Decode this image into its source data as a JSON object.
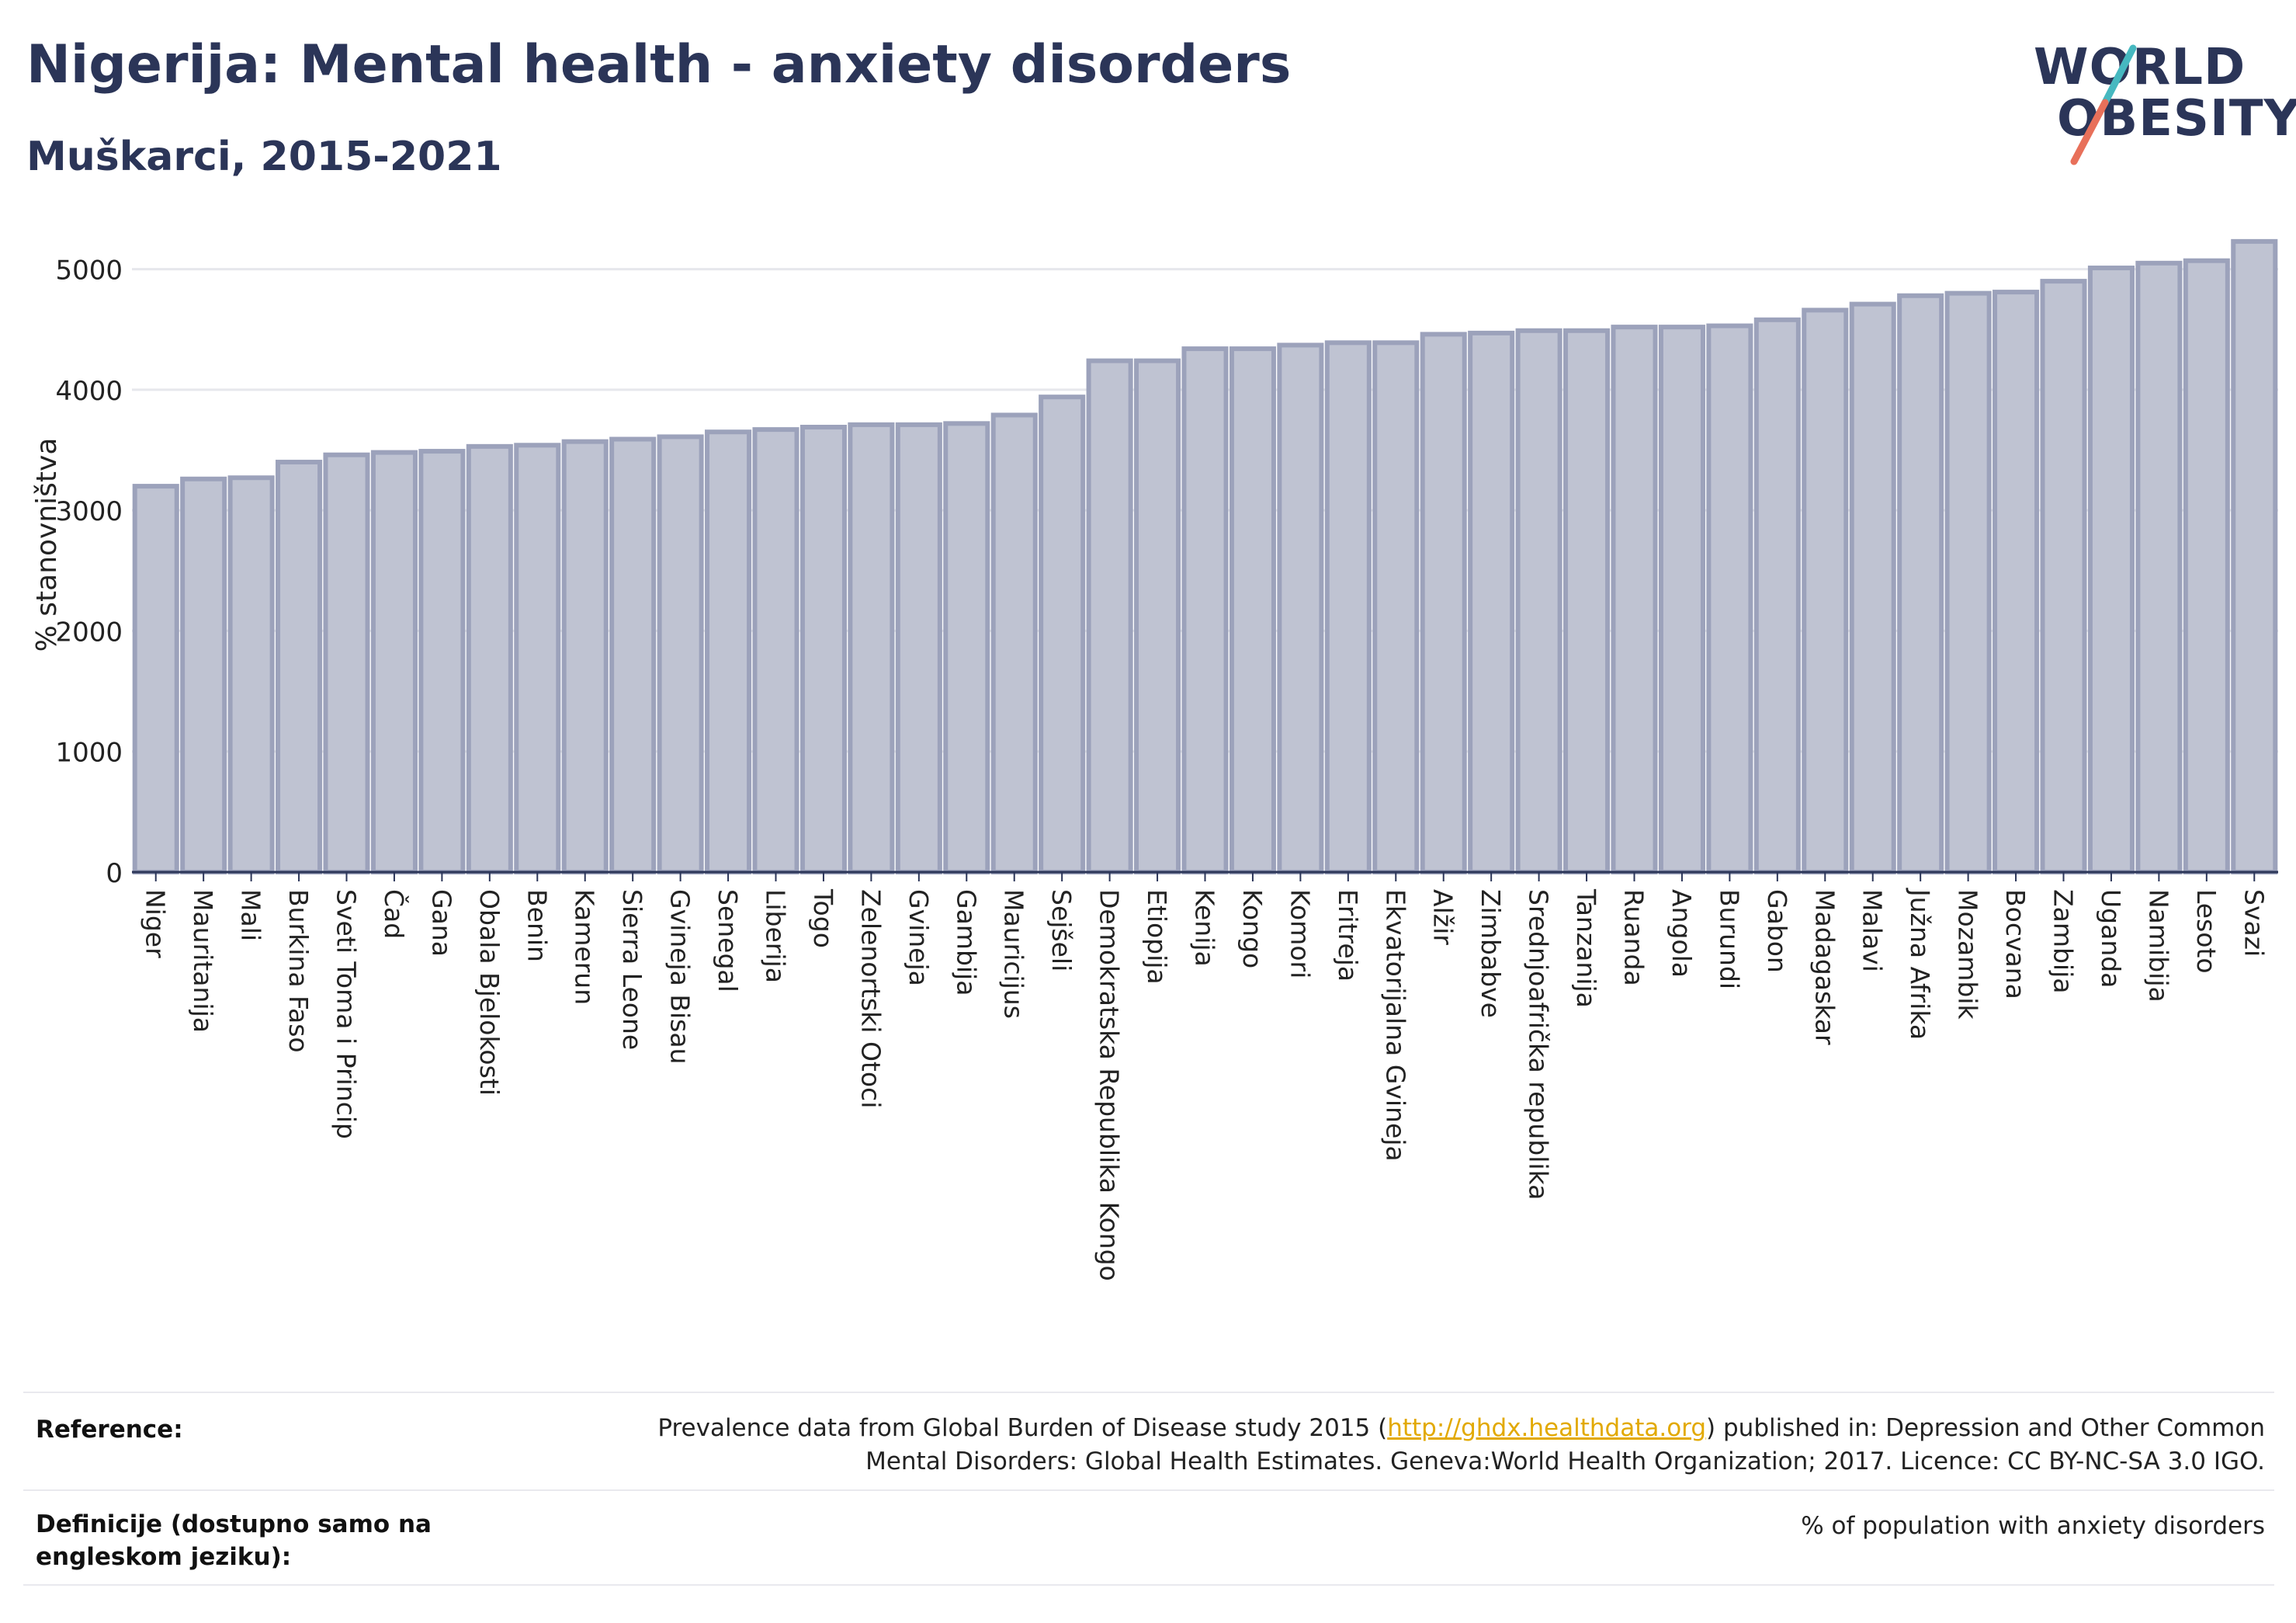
{
  "title": "Nigerija: Mental health - anxiety disorders",
  "subtitle": "Muškarci, 2015-2021",
  "logo": {
    "line1": "WORLD",
    "line2": "OBESITY",
    "colors": {
      "text": "#2b3558",
      "slash_top": "#46b8c0",
      "slash_bottom": "#e8705a"
    }
  },
  "chart_data": {
    "type": "bar",
    "ylabel": "% stanovništva",
    "xlabel": "",
    "ylim": [
      0,
      5300
    ],
    "yticks": [
      0,
      1000,
      2000,
      3000,
      4000,
      5000
    ],
    "grid": true,
    "bar_fill": "#bfc3d2",
    "bar_stroke": "#9ca2bb",
    "categories": [
      "Niger",
      "Mauritanija",
      "Mali",
      "Burkina Faso",
      "Sveti Toma i Princip",
      "Čad",
      "Gana",
      "Obala Bjelokosti",
      "Benin",
      "Kamerun",
      "Sierra Leone",
      "Gvineja Bisau",
      "Senegal",
      "Liberija",
      "Togo",
      "Zelenortski Otoci",
      "Gvineja",
      "Gambija",
      "Mauricijus",
      "Sejšeli",
      "Demokratska Republika Kongo",
      "Etiopija",
      "Kenija",
      "Kongo",
      "Komori",
      "Eritreja",
      "Ekvatorijalna Gvineja",
      "Alžir",
      "Zimbabve",
      "Srednjoafrička republika",
      "Tanzanija",
      "Ruanda",
      "Angola",
      "Burundi",
      "Gabon",
      "Madagaskar",
      "Malavi",
      "Južna Afrika",
      "Mozambik",
      "Bocvana",
      "Zambija",
      "Uganda",
      "Namibija",
      "Lesoto",
      "Svazi"
    ],
    "values": [
      3200,
      3260,
      3270,
      3400,
      3460,
      3480,
      3490,
      3530,
      3540,
      3570,
      3590,
      3610,
      3650,
      3670,
      3690,
      3710,
      3710,
      3720,
      3790,
      3940,
      4240,
      4240,
      4340,
      4340,
      4370,
      4390,
      4390,
      4460,
      4470,
      4490,
      4490,
      4520,
      4520,
      4530,
      4580,
      4660,
      4710,
      4780,
      4800,
      4810,
      4900,
      5010,
      5050,
      5070,
      5230
    ]
  },
  "footer": {
    "reference_label": "Reference:",
    "reference_text_before": "Prevalence data from Global Burden of Disease study 2015 (",
    "reference_link": "http://ghdx.healthdata.org",
    "reference_text_after": ") published in: Depression and Other Common Mental Disorders: Global Health Estimates. Geneva:World Health Organization; 2017. Licence: CC BY-NC-SA 3.0 IGO.",
    "definition_label": "Definicije (dostupno samo na engleskom jeziku):",
    "definition_text": "% of population with anxiety disorders"
  }
}
